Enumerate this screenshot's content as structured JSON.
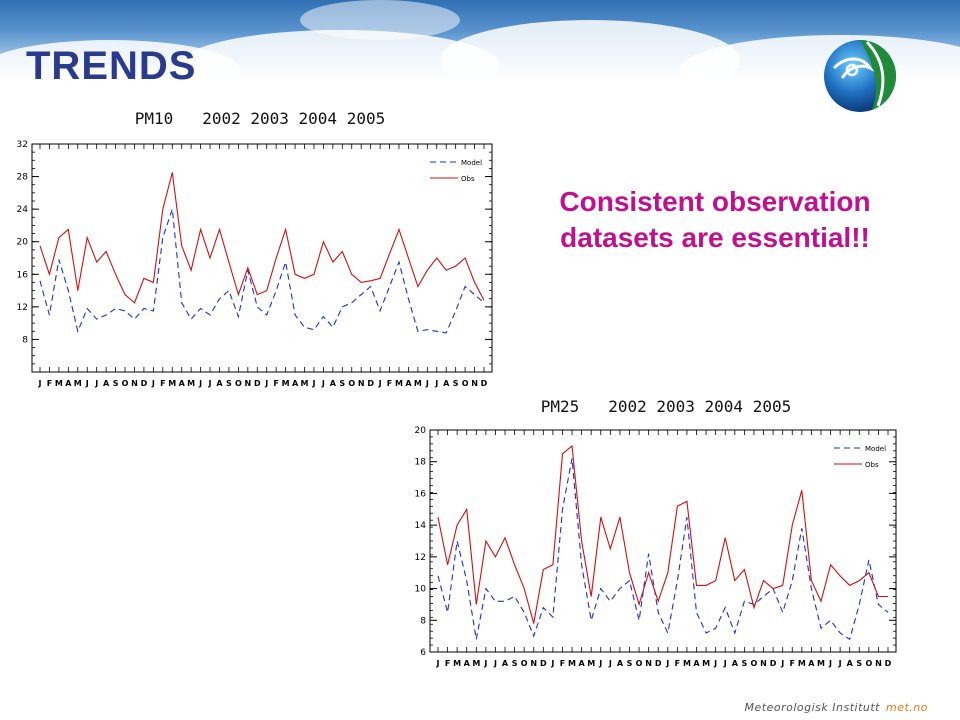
{
  "slide": {
    "title": "TRENDS",
    "message_line1": "Consistent observation",
    "message_line2": "datasets are essential!!",
    "footer_org": "Meteorologisk Institutt",
    "footer_site": "met.no",
    "logo": "met-no-globe-icon"
  },
  "colors": {
    "model": "#1a2fd6",
    "obs": "#cc1111",
    "title": "#2a3a8c",
    "message": "#c0108f"
  },
  "chart_data": [
    {
      "type": "line",
      "title": "PM10   2002 2003 2004 2005",
      "ylim": [
        4,
        32
      ],
      "yticks": [
        8,
        12,
        16,
        20,
        24,
        28,
        32
      ],
      "xlabels": [
        "J",
        "F",
        "M",
        "A",
        "M",
        "J",
        "J",
        "A",
        "S",
        "O",
        "N",
        "D",
        "J",
        "F",
        "M",
        "A",
        "M",
        "J",
        "J",
        "A",
        "S",
        "O",
        "N",
        "D",
        "J",
        "F",
        "M",
        "A",
        "M",
        "J",
        "J",
        "A",
        "S",
        "O",
        "N",
        "D",
        "J",
        "F",
        "M",
        "A",
        "M",
        "J",
        "J",
        "A",
        "S",
        "O",
        "N",
        "D"
      ],
      "legend": "top-right",
      "series": [
        {
          "name": "Model",
          "style": "dashed",
          "values": [
            15.2,
            11.0,
            17.8,
            14.0,
            9.0,
            11.8,
            10.5,
            11.0,
            11.8,
            11.5,
            10.5,
            11.8,
            11.5,
            20.5,
            24.0,
            12.5,
            10.5,
            11.8,
            11.0,
            13.0,
            14.0,
            10.8,
            16.5,
            12.0,
            11.0,
            14.0,
            17.5,
            11.0,
            9.5,
            9.2,
            10.8,
            9.5,
            12.0,
            12.5,
            13.5,
            14.5,
            11.5,
            14.5,
            17.5,
            13.0,
            9.0,
            9.2,
            9.0,
            8.8,
            11.5,
            14.5,
            13.5,
            12.5
          ]
        },
        {
          "name": "Obs",
          "style": "solid",
          "values": [
            19.5,
            16.0,
            20.5,
            21.5,
            14.0,
            20.5,
            17.5,
            18.8,
            16.0,
            13.5,
            12.5,
            15.5,
            15.0,
            24.0,
            28.5,
            19.5,
            16.5,
            21.5,
            18.0,
            21.5,
            17.5,
            13.5,
            16.8,
            13.5,
            14.0,
            18.0,
            21.5,
            16.0,
            15.5,
            16.0,
            20.0,
            17.5,
            18.8,
            16.0,
            15.0,
            15.2,
            15.5,
            18.5,
            21.5,
            18.0,
            14.5,
            16.5,
            18.0,
            16.5,
            17.0,
            18.0,
            15.0,
            12.8
          ]
        }
      ]
    },
    {
      "type": "line",
      "title": "PM25   2002 2003 2004 2005",
      "ylim": [
        6,
        20
      ],
      "yticks": [
        6,
        8,
        10,
        12,
        14,
        16,
        18,
        20
      ],
      "xlabels": [
        "J",
        "F",
        "M",
        "A",
        "M",
        "J",
        "J",
        "A",
        "S",
        "O",
        "N",
        "D",
        "J",
        "F",
        "M",
        "A",
        "M",
        "J",
        "J",
        "A",
        "S",
        "O",
        "N",
        "D",
        "J",
        "F",
        "M",
        "A",
        "M",
        "J",
        "J",
        "A",
        "S",
        "O",
        "N",
        "D",
        "J",
        "F",
        "M",
        "A",
        "M",
        "J",
        "J",
        "A",
        "S",
        "O",
        "N",
        "D"
      ],
      "legend": "top-right",
      "series": [
        {
          "name": "Model",
          "style": "dashed",
          "values": [
            10.8,
            8.5,
            13.0,
            10.5,
            6.8,
            10.0,
            9.2,
            9.2,
            9.5,
            8.5,
            7.0,
            8.8,
            8.2,
            15.0,
            18.2,
            11.5,
            8.0,
            10.0,
            9.2,
            10.0,
            10.5,
            8.0,
            12.2,
            8.5,
            7.2,
            10.5,
            14.5,
            8.5,
            7.2,
            7.5,
            8.8,
            7.2,
            9.2,
            9.0,
            9.5,
            10.0,
            8.5,
            10.5,
            13.8,
            10.0,
            7.5,
            8.0,
            7.2,
            6.8,
            9.0,
            11.8,
            9.0,
            8.5
          ]
        },
        {
          "name": "Obs",
          "style": "solid",
          "values": [
            14.5,
            11.5,
            14.0,
            15.0,
            9.0,
            13.0,
            12.0,
            13.2,
            11.5,
            10.0,
            7.8,
            11.2,
            11.5,
            18.5,
            19.0,
            13.0,
            9.5,
            14.5,
            12.5,
            14.5,
            11.0,
            9.0,
            11.0,
            9.2,
            11.0,
            15.2,
            15.5,
            10.2,
            10.2,
            10.5,
            13.2,
            10.5,
            11.2,
            8.8,
            10.5,
            10.0,
            10.2,
            14.0,
            16.2,
            10.5,
            9.2,
            11.5,
            10.8,
            10.2,
            10.5,
            11.0,
            9.5,
            9.5
          ]
        }
      ]
    }
  ]
}
